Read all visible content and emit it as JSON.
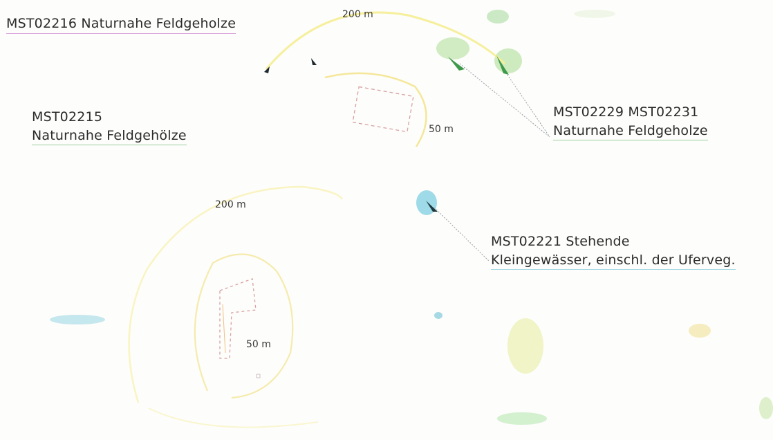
{
  "map": {
    "labels": {
      "mst02216": "MST02216 Naturnahe Feldgeholze",
      "mst02215_id": "MST02215",
      "mst02215_type": "Naturnahe Feldgehölze",
      "mst02229_ids": "MST02229 MST02231",
      "mst02229_type": "Naturnahe Feldgeholze",
      "mst02221_id": "MST02221 Stehende",
      "mst02221_type": "Kleingewässer, einschl. der Uferveg."
    },
    "distances": {
      "upper_200": "200 m",
      "upper_50": "50 m",
      "lower_200": "200 m",
      "lower_50": "50 m"
    },
    "colors": {
      "buffer_200": "#f6ef9c",
      "buffer_50": "#f4e79a",
      "parcel_outline": "#d8a0a0",
      "feldgehoelze": "#3e9a4a",
      "water": "#4fb6d6",
      "leader_line": "#9aa0a6"
    }
  }
}
